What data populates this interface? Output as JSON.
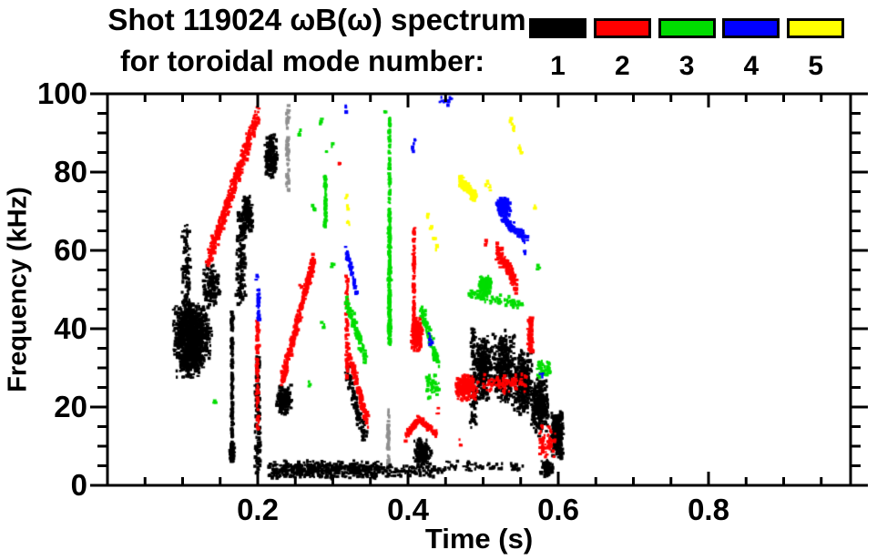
{
  "header": {
    "title_line1": "Shot 119024 ωB(ω) spectrum",
    "title_line2": "for toroidal mode number:"
  },
  "legend": {
    "entries": [
      {
        "label": "1",
        "color": "#000000"
      },
      {
        "label": "2",
        "color": "#ff0000"
      },
      {
        "label": "3",
        "color": "#00dd00"
      },
      {
        "label": "4",
        "color": "#0000ff"
      },
      {
        "label": "5",
        "color": "#ffff00"
      }
    ]
  },
  "chart_data": {
    "type": "scatter",
    "title": "Shot 119024 ωB(ω) spectrum for toroidal mode number: 1-5",
    "xlabel": "Time (s)",
    "ylabel": "Frequency (kHz)",
    "xlim": [
      0,
      0.99
    ],
    "ylim": [
      0,
      100
    ],
    "grid": false,
    "legend_position": "top-right",
    "x_major_ticks": [
      {
        "t": 0.2,
        "label": "0.2"
      },
      {
        "t": 0.4,
        "label": "0.4"
      },
      {
        "t": 0.6,
        "label": "0.6"
      },
      {
        "t": 0.8,
        "label": "0.8"
      }
    ],
    "x_minor_step": 0.05,
    "y_major_ticks": [
      {
        "f": 0,
        "label": "0"
      },
      {
        "f": 20,
        "label": "20"
      },
      {
        "f": 40,
        "label": "40"
      },
      {
        "f": 60,
        "label": "60"
      },
      {
        "f": 80,
        "label": "80"
      },
      {
        "f": 100,
        "label": "100"
      }
    ],
    "y_minor_step": 5,
    "modes": [
      {
        "mode": 1,
        "color": "#000000"
      },
      {
        "mode": 2,
        "color": "#ff0000"
      },
      {
        "mode": 3,
        "color": "#00dd00"
      },
      {
        "mode": 4,
        "color": "#0000ff"
      },
      {
        "mode": 5,
        "color": "#ffff00"
      }
    ],
    "features": [
      {
        "mode": 1,
        "type": "blob",
        "t": 0.112,
        "f": 39,
        "rt": 0.027,
        "rf": 8,
        "n": 900
      },
      {
        "mode": 1,
        "type": "blob",
        "t": 0.11,
        "f": 32,
        "rt": 0.02,
        "rf": 5,
        "n": 220
      },
      {
        "mode": 1,
        "type": "vline",
        "t": 0.105,
        "f1": 46,
        "f2": 67,
        "jt": 0.006,
        "n": 90
      },
      {
        "mode": 1,
        "type": "blob",
        "t": 0.138,
        "f": 51,
        "rt": 0.013,
        "rf": 6,
        "n": 120
      },
      {
        "mode": 1,
        "type": "vline",
        "t": 0.166,
        "f1": 6,
        "f2": 45,
        "jt": 0.0015,
        "n": 150
      },
      {
        "mode": 1,
        "type": "blob",
        "t": 0.166,
        "f": 8,
        "rt": 0.004,
        "rf": 3,
        "n": 50
      },
      {
        "mode": 1,
        "type": "vline",
        "t": 0.178,
        "f1": 46,
        "f2": 70,
        "jt": 0.007,
        "n": 140
      },
      {
        "mode": 1,
        "type": "blob",
        "t": 0.186,
        "f": 69,
        "rt": 0.008,
        "rf": 6,
        "n": 150
      },
      {
        "mode": 1,
        "type": "blob",
        "t": 0.218,
        "f": 84,
        "rt": 0.009,
        "rf": 6,
        "n": 190
      },
      {
        "mode": 1,
        "type": "vline",
        "t": 0.24,
        "f1": 75,
        "f2": 97,
        "jt": 0.002,
        "n": 60,
        "faint": true
      },
      {
        "mode": 1,
        "type": "vline",
        "t": 0.374,
        "f1": 3,
        "f2": 20,
        "jt": 0.0015,
        "n": 50,
        "faint": true
      },
      {
        "mode": 1,
        "type": "vline",
        "t": 0.2,
        "f1": 3,
        "f2": 33,
        "jt": 0.004,
        "n": 160
      },
      {
        "mode": 1,
        "type": "blob",
        "t": 0.235,
        "f": 22,
        "rt": 0.011,
        "rf": 4,
        "n": 140
      },
      {
        "mode": 1,
        "type": "band",
        "t1": 0.215,
        "t2": 0.36,
        "f1": 1.5,
        "f2": 6.5,
        "n": 450
      },
      {
        "mode": 1,
        "type": "band",
        "t1": 0.36,
        "t2": 0.45,
        "f1": 2,
        "f2": 5.5,
        "n": 90
      },
      {
        "mode": 1,
        "type": "band",
        "t1": 0.45,
        "t2": 0.555,
        "f1": 3.5,
        "f2": 6.5,
        "n": 55
      },
      {
        "mode": 1,
        "type": "diag",
        "t1": 0.318,
        "f1": 30,
        "t2": 0.342,
        "f2": 12,
        "jt": 0.004,
        "jf": 3,
        "n": 100
      },
      {
        "mode": 1,
        "type": "blob",
        "t": 0.42,
        "f": 8,
        "rt": 0.013,
        "rf": 4,
        "n": 150
      },
      {
        "mode": 1,
        "type": "vline",
        "t": 0.487,
        "f1": 14,
        "f2": 40,
        "jt": 0.005,
        "n": 90
      },
      {
        "mode": 1,
        "type": "blob",
        "t": 0.5,
        "f": 30,
        "rt": 0.013,
        "rf": 9,
        "n": 260
      },
      {
        "mode": 1,
        "type": "blob",
        "t": 0.527,
        "f": 30,
        "rt": 0.016,
        "rf": 10,
        "n": 330
      },
      {
        "mode": 1,
        "type": "blob",
        "t": 0.553,
        "f": 26,
        "rt": 0.014,
        "rf": 9,
        "n": 300
      },
      {
        "mode": 1,
        "type": "blob",
        "t": 0.576,
        "f": 20,
        "rt": 0.012,
        "rf": 8,
        "n": 260
      },
      {
        "mode": 1,
        "type": "blob",
        "t": 0.598,
        "f": 13,
        "rt": 0.008,
        "rf": 7,
        "n": 190
      },
      {
        "mode": 1,
        "type": "vline",
        "t": 0.604,
        "f1": 6,
        "f2": 19,
        "jt": 0.003,
        "n": 60
      },
      {
        "mode": 1,
        "type": "blob",
        "t": 0.585,
        "f": 4.5,
        "rt": 0.009,
        "rf": 2.5,
        "n": 80
      },
      {
        "mode": 2,
        "type": "diag",
        "t1": 0.134,
        "f1": 57,
        "t2": 0.2,
        "f2": 95,
        "jt": 0.004,
        "jf": 2.5,
        "n": 420
      },
      {
        "mode": 2,
        "type": "diag",
        "t1": 0.233,
        "f1": 27,
        "t2": 0.275,
        "f2": 58,
        "jt": 0.003,
        "jf": 2,
        "n": 300
      },
      {
        "mode": 2,
        "type": "vline",
        "t": 0.2,
        "f1": 14,
        "f2": 42,
        "jt": 0.002,
        "n": 90
      },
      {
        "mode": 2,
        "type": "vline",
        "t": 0.319,
        "f1": 27,
        "f2": 54,
        "jt": 0.002,
        "n": 70
      },
      {
        "mode": 2,
        "type": "diag",
        "t1": 0.321,
        "f1": 34,
        "t2": 0.346,
        "f2": 16,
        "jt": 0.003,
        "jf": 2,
        "n": 120
      },
      {
        "mode": 2,
        "type": "vline",
        "t": 0.408,
        "f1": 40,
        "f2": 66,
        "jt": 0.0015,
        "n": 90
      },
      {
        "mode": 2,
        "type": "blob",
        "t": 0.412,
        "f": 38.5,
        "rt": 0.008,
        "rf": 4.5,
        "n": 210
      },
      {
        "mode": 2,
        "type": "diag",
        "t1": 0.396,
        "f1": 12,
        "t2": 0.414,
        "f2": 17,
        "jt": 0.002,
        "jf": 1.2,
        "n": 70
      },
      {
        "mode": 2,
        "type": "diag",
        "t1": 0.414,
        "f1": 17,
        "t2": 0.438,
        "f2": 13,
        "jt": 0.002,
        "jf": 1.2,
        "n": 70
      },
      {
        "mode": 2,
        "type": "blob",
        "t": 0.478,
        "f": 25,
        "rt": 0.016,
        "rf": 3.5,
        "n": 230
      },
      {
        "mode": 2,
        "type": "band",
        "t1": 0.5,
        "t2": 0.557,
        "f1": 23.5,
        "f2": 28.5,
        "n": 85
      },
      {
        "mode": 2,
        "type": "diag",
        "t1": 0.519,
        "f1": 60,
        "t2": 0.545,
        "f2": 51,
        "jt": 0.003,
        "jf": 2.5,
        "n": 140
      },
      {
        "mode": 2,
        "type": "vline",
        "t": 0.563,
        "f1": 34,
        "f2": 43,
        "jt": 0.004,
        "n": 85
      },
      {
        "mode": 2,
        "type": "band",
        "t1": 0.575,
        "t2": 0.596,
        "f1": 7,
        "f2": 16,
        "n": 60
      },
      {
        "mode": 2,
        "type": "dots",
        "pts": [
          [
            0.31,
            82
          ],
          [
            0.258,
            51
          ],
          [
            0.47,
            11
          ],
          [
            0.505,
            62
          ],
          [
            0.44,
            19
          ]
        ]
      },
      {
        "mode": 3,
        "type": "vline",
        "t": 0.29,
        "f1": 66,
        "f2": 79,
        "jt": 0.0015,
        "n": 60
      },
      {
        "mode": 3,
        "type": "vline",
        "t": 0.3755,
        "f1": 36,
        "f2": 66,
        "jt": 0.0018,
        "n": 230
      },
      {
        "mode": 3,
        "type": "vline",
        "t": 0.3755,
        "f1": 66,
        "f2": 94,
        "jt": 0.0012,
        "n": 80
      },
      {
        "mode": 3,
        "type": "diag",
        "t1": 0.318,
        "f1": 47,
        "t2": 0.344,
        "f2": 32,
        "jt": 0.003,
        "jf": 2,
        "n": 110
      },
      {
        "mode": 3,
        "type": "diag",
        "t1": 0.418,
        "f1": 45,
        "t2": 0.44,
        "f2": 31,
        "jt": 0.003,
        "jf": 2,
        "n": 95
      },
      {
        "mode": 3,
        "type": "band",
        "t1": 0.425,
        "t2": 0.442,
        "f1": 22,
        "f2": 29,
        "n": 40
      },
      {
        "mode": 3,
        "type": "blob",
        "t": 0.503,
        "f": 51,
        "rt": 0.009,
        "rf": 2.5,
        "n": 160
      },
      {
        "mode": 3,
        "type": "diag",
        "t1": 0.48,
        "f1": 49,
        "t2": 0.553,
        "f2": 46,
        "jt": 0.004,
        "jf": 1.5,
        "n": 80
      },
      {
        "mode": 3,
        "type": "band",
        "t1": 0.572,
        "t2": 0.59,
        "f1": 27,
        "f2": 32,
        "n": 40
      },
      {
        "mode": 3,
        "type": "dots",
        "pts": [
          [
            0.574,
            56
          ],
          [
            0.37,
            95
          ],
          [
            0.142,
            21
          ],
          [
            0.255,
            90
          ],
          [
            0.284,
            93
          ],
          [
            0.292,
            85
          ],
          [
            0.3,
            87
          ],
          [
            0.27,
            26
          ],
          [
            0.287,
            41
          ],
          [
            0.3,
            56
          ],
          [
            0.275,
            71
          ]
        ]
      },
      {
        "mode": 4,
        "type": "dots",
        "pts": [
          [
            0.444,
            98.5
          ],
          [
            0.449,
            98
          ],
          [
            0.453,
            97.5
          ],
          [
            0.457,
            98.5
          ],
          [
            0.316,
            96
          ],
          [
            0.406,
            86
          ],
          [
            0.408,
            88
          ],
          [
            0.199,
            53
          ],
          [
            0.429,
            38
          ],
          [
            0.431,
            36.5
          ],
          [
            0.578,
            28
          ],
          [
            0.555,
            60
          ]
        ]
      },
      {
        "mode": 4,
        "type": "diag",
        "t1": 0.318,
        "f1": 60,
        "t2": 0.332,
        "f2": 49,
        "jt": 0.002,
        "jf": 1.5,
        "n": 55
      },
      {
        "mode": 4,
        "type": "vline",
        "t": 0.201,
        "f1": 42,
        "f2": 50,
        "jt": 0.002,
        "n": 28
      },
      {
        "mode": 4,
        "type": "blob",
        "t": 0.527,
        "f": 71,
        "rt": 0.01,
        "rf": 2.5,
        "n": 160
      },
      {
        "mode": 4,
        "type": "diag",
        "t1": 0.525,
        "f1": 68,
        "t2": 0.557,
        "f2": 63,
        "jt": 0.004,
        "jf": 1.8,
        "n": 75
      },
      {
        "mode": 5,
        "type": "diag",
        "t1": 0.469,
        "f1": 78,
        "t2": 0.49,
        "f2": 73.5,
        "jt": 0.002,
        "jf": 1.5,
        "n": 140
      },
      {
        "mode": 5,
        "type": "dots",
        "pts": [
          [
            0.318,
            74
          ],
          [
            0.32,
            71
          ],
          [
            0.322,
            67
          ],
          [
            0.427,
            69
          ],
          [
            0.43,
            66
          ],
          [
            0.438,
            61
          ],
          [
            0.436,
            63
          ],
          [
            0.505,
            77
          ],
          [
            0.508,
            76
          ],
          [
            0.488,
            74
          ],
          [
            0.538,
            93
          ],
          [
            0.54,
            91
          ],
          [
            0.549,
            86
          ],
          [
            0.551,
            84.5
          ],
          [
            0.568,
            71
          ]
        ]
      }
    ]
  }
}
